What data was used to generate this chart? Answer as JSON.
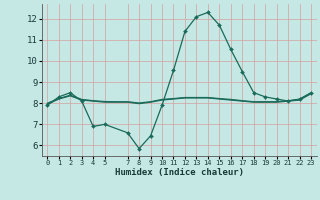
{
  "title": "",
  "xlabel": "Humidex (Indice chaleur)",
  "ylabel": "",
  "bg_color": "#c5e8e5",
  "grid_color": "#d4a0a0",
  "line_color": "#1a6b5a",
  "xlim": [
    -0.5,
    23.5
  ],
  "ylim": [
    5.5,
    12.7
  ],
  "yticks": [
    6,
    7,
    8,
    9,
    10,
    11,
    12
  ],
  "xticks": [
    0,
    1,
    2,
    3,
    4,
    5,
    7,
    8,
    9,
    10,
    11,
    12,
    13,
    14,
    15,
    16,
    17,
    18,
    19,
    20,
    21,
    22,
    23
  ],
  "line1_x": [
    0,
    1,
    2,
    3,
    4,
    5,
    7,
    8,
    9,
    10,
    11,
    12,
    13,
    14,
    15,
    16,
    17,
    18,
    19,
    20,
    21,
    22,
    23
  ],
  "line1_y": [
    7.9,
    8.3,
    8.5,
    8.1,
    6.9,
    7.0,
    6.6,
    5.85,
    6.45,
    7.9,
    9.55,
    11.4,
    12.1,
    12.3,
    11.7,
    10.55,
    9.5,
    8.5,
    8.3,
    8.2,
    8.1,
    8.2,
    8.5
  ],
  "line2_x": [
    0,
    1,
    2,
    3,
    4,
    5,
    6,
    7,
    8,
    9,
    10,
    11,
    12,
    13,
    14,
    15,
    16,
    17,
    18,
    19,
    20,
    21,
    22,
    23
  ],
  "line2_y": [
    7.95,
    8.2,
    8.35,
    8.15,
    8.1,
    8.05,
    8.05,
    8.05,
    7.98,
    8.05,
    8.15,
    8.2,
    8.25,
    8.25,
    8.25,
    8.2,
    8.15,
    8.1,
    8.05,
    8.05,
    8.05,
    8.1,
    8.15,
    8.45
  ],
  "line3_x": [
    0,
    1,
    2,
    3,
    4,
    5,
    6,
    7,
    8,
    9,
    10,
    11,
    12,
    13,
    14,
    15,
    16,
    17,
    18,
    19,
    20,
    21,
    22,
    23
  ],
  "line3_y": [
    8.0,
    8.22,
    8.38,
    8.18,
    8.12,
    8.08,
    8.07,
    8.07,
    8.01,
    8.07,
    8.18,
    8.22,
    8.27,
    8.27,
    8.27,
    8.22,
    8.18,
    8.12,
    8.07,
    8.07,
    8.07,
    8.12,
    8.18,
    8.48
  ],
  "marker_size": 2.0,
  "line_width": 0.9
}
